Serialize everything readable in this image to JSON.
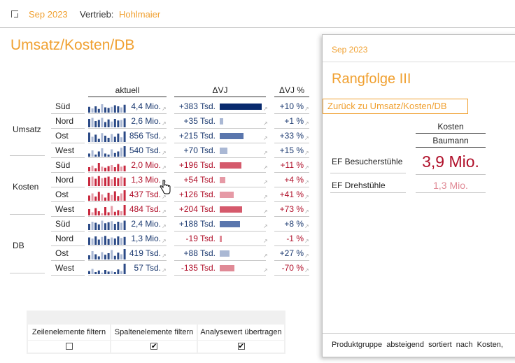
{
  "header": {
    "period": "Sep 2023",
    "sales_label": "Vertrieb:",
    "sales_value": "Hohlmaier"
  },
  "report": {
    "title": "Umsatz/Kosten/DB",
    "columns": {
      "actual": "aktuell",
      "delta": "ΔVJ",
      "delta_pct": "ΔVJ %"
    },
    "groups": [
      {
        "label": "Umsatz",
        "rows": [
          {
            "region": "Süd",
            "actual": "4,4 Mio.",
            "delta": "+383 Tsd.",
            "delta_pct": "+10 %",
            "delta_value": 383,
            "spark": [
              0.55,
              0.4,
              0.6,
              0.35,
              0.8,
              0.5,
              0.45,
              0.55,
              0.7,
              0.6,
              0.5,
              0.75
            ]
          },
          {
            "region": "Nord",
            "actual": "2,6 Mio.",
            "delta": "+35 Tsd.",
            "delta_pct": "+1 %",
            "delta_value": 35,
            "spark": [
              0.8,
              0.9,
              0.6,
              0.7,
              0.9,
              0.5,
              0.75,
              0.55,
              0.8,
              0.65,
              0.7,
              0.85
            ]
          },
          {
            "region": "Ost",
            "actual": "856 Tsd.",
            "delta": "+215 Tsd.",
            "delta_pct": "+33 %",
            "delta_value": 215,
            "spark": [
              0.9,
              0.5,
              0.7,
              0.3,
              0.85,
              0.6,
              0.4,
              0.75,
              0.5,
              0.8,
              0.45,
              1.0
            ]
          },
          {
            "region": "West",
            "actual": "540 Tsd.",
            "delta": "+70 Tsd.",
            "delta_pct": "+15 %",
            "delta_value": 70,
            "spark": [
              0.3,
              0.6,
              0.2,
              0.5,
              0.8,
              0.3,
              0.2,
              0.7,
              0.35,
              0.5,
              0.85,
              1.0
            ]
          }
        ]
      },
      {
        "label": "Kosten",
        "rows": [
          {
            "region": "Süd",
            "actual": "2,0 Mio.",
            "delta": "+196 Tsd.",
            "delta_pct": "+11 %",
            "delta_value": 196,
            "spark": [
              0.4,
              0.55,
              0.3,
              0.8,
              0.45,
              0.35,
              0.5,
              0.6,
              0.4,
              0.7,
              0.45,
              0.55
            ]
          },
          {
            "region": "Nord",
            "actual": "1,3 Mio.",
            "delta": "+54 Tsd.",
            "delta_pct": "+4 %",
            "delta_value": 54,
            "spark": [
              0.85,
              0.9,
              0.7,
              0.95,
              0.75,
              0.8,
              0.9,
              0.65,
              0.85,
              0.75,
              0.9,
              0.8
            ]
          },
          {
            "region": "Ost",
            "actual": "437 Tsd.",
            "delta": "+126 Tsd.",
            "delta_pct": "+41 %",
            "delta_value": 126,
            "spark": [
              0.5,
              0.7,
              0.4,
              0.85,
              0.6,
              0.3,
              0.75,
              0.55,
              0.9,
              0.45,
              0.7,
              1.0
            ]
          },
          {
            "region": "West",
            "actual": "484 Tsd.",
            "delta": "+204 Tsd.",
            "delta_pct": "+73 %",
            "delta_value": 204,
            "spark": [
              0.6,
              0.3,
              0.7,
              0.4,
              0.2,
              0.8,
              0.3,
              0.9,
              0.35,
              0.5,
              0.4,
              1.0
            ]
          }
        ]
      },
      {
        "label": "DB",
        "rows": [
          {
            "region": "Süd",
            "actual": "2,4 Mio.",
            "delta": "+188 Tsd.",
            "delta_pct": "+8 %",
            "delta_value": 188,
            "spark": [
              0.6,
              0.8,
              0.7,
              0.55,
              0.9,
              0.65,
              0.75,
              0.85,
              0.6,
              0.8,
              0.7,
              0.9
            ]
          },
          {
            "region": "Nord",
            "actual": "1,3 Mio.",
            "delta": "-19 Tsd.",
            "delta_pct": "-1 %",
            "delta_value": -19,
            "spark": [
              0.7,
              0.6,
              0.8,
              0.5,
              0.75,
              0.85,
              0.55,
              0.7,
              0.6,
              0.8,
              0.65,
              0.75
            ]
          },
          {
            "region": "Ost",
            "actual": "419 Tsd.",
            "delta": "+88 Tsd.",
            "delta_pct": "+27 %",
            "delta_value": 88,
            "spark": [
              0.4,
              0.8,
              0.5,
              0.3,
              0.7,
              0.45,
              0.6,
              0.9,
              0.35,
              0.65,
              0.5,
              1.0
            ]
          },
          {
            "region": "West",
            "actual": "57 Tsd.",
            "delta": "-135 Tsd.",
            "delta_pct": "-70 %",
            "delta_value": -135,
            "spark": [
              0.3,
              0.5,
              0.2,
              0.35,
              0.15,
              0.4,
              0.25,
              0.3,
              0.2,
              0.45,
              0.3,
              1.0
            ]
          }
        ]
      }
    ],
    "colors": {
      "umsatz": "#2b4a86",
      "umsatz_light": "#aab8d4",
      "umsatz_dark": "#082a6e",
      "kosten": "#c8283e",
      "kosten_light": "#e69aa6",
      "db": "#2b4a86",
      "db_light": "#aab8d4",
      "db_neg": "#e08a96",
      "positive_text": "#1c3a70",
      "kosten_text": "#b0102a",
      "negative_text": "#b0102a"
    }
  },
  "filters": {
    "headers": [
      "Zeilenelemente filtern",
      "Spaltenelemente filtern",
      "Analysewert übertragen"
    ],
    "checked": [
      false,
      true,
      true
    ]
  },
  "popup": {
    "period": "Sep 2023",
    "title": "Rangfolge III",
    "back_label": "Zurück zu Umsatz/Kosten/DB",
    "col_header": "Kosten",
    "sub_header": "Baumann",
    "rows": [
      {
        "label": "EF Besucherstühle",
        "value": "3,9 Mio."
      },
      {
        "label": "EF Drehstühle",
        "value": "1,3 Mio."
      }
    ],
    "footer": "Produktgruppe absteigend sortiert nach Kosten,"
  }
}
